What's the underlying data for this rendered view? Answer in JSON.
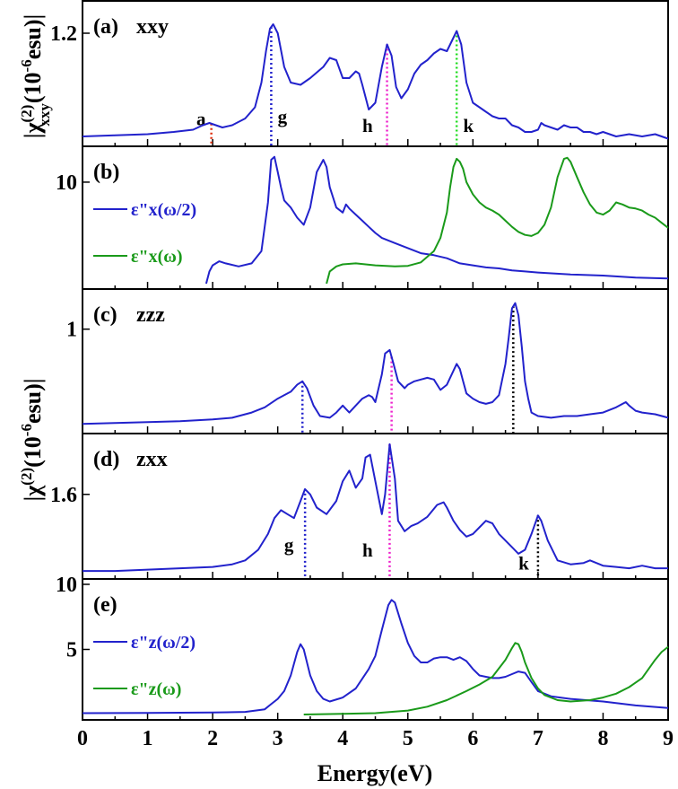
{
  "chart_data": {
    "type": "line",
    "xlabel": "Energy(eV)",
    "xlim": [
      0,
      9
    ],
    "x_ticks": [
      "0",
      "1",
      "2",
      "3",
      "4",
      "5",
      "6",
      "7",
      "8",
      "9"
    ],
    "ylabel_top": "|χ(2)xxy(10-6esu)|",
    "ylabel_mid": "|χ(2)(10-6esu)|",
    "colors": {
      "blue": "#2222cc",
      "green": "#1a9a1a",
      "red": "#e03010",
      "magenta": "#ee22cc",
      "lime": "#22dd22",
      "black": "#000000"
    },
    "panels": [
      {
        "id": "a",
        "label": "(a)",
        "name": "xxy",
        "ylim": [
          0.72,
          1.32
        ],
        "y_ticks": [
          {
            "value": 1.2,
            "label": "1.2"
          }
        ],
        "series": [
          {
            "name": "|χ(2)xxy|",
            "color": "blue",
            "x": [
              0,
              0.5,
              1,
              1.4,
              1.7,
              1.85,
              1.95,
              2.05,
              2.15,
              2.3,
              2.5,
              2.65,
              2.75,
              2.82,
              2.88,
              2.93,
              3.0,
              3.1,
              3.2,
              3.35,
              3.5,
              3.7,
              3.8,
              3.9,
              4.0,
              4.1,
              4.2,
              4.25,
              4.3,
              4.4,
              4.5,
              4.6,
              4.68,
              4.75,
              4.82,
              4.9,
              5.0,
              5.1,
              5.2,
              5.3,
              5.4,
              5.5,
              5.6,
              5.7,
              5.75,
              5.82,
              5.9,
              6.0,
              6.1,
              6.2,
              6.3,
              6.4,
              6.5,
              6.6,
              6.7,
              6.8,
              6.9,
              7.0,
              7.05,
              7.1,
              7.2,
              7.3,
              7.4,
              7.5,
              7.6,
              7.7,
              7.8,
              7.9,
              8.0,
              8.2,
              8.4,
              8.6,
              8.8,
              9.0
            ],
            "y": [
              0.74,
              0.745,
              0.75,
              0.76,
              0.77,
              0.79,
              0.8,
              0.79,
              0.78,
              0.79,
              0.82,
              0.87,
              0.98,
              1.12,
              1.22,
              1.24,
              1.2,
              1.05,
              0.98,
              0.97,
              1.0,
              1.05,
              1.09,
              1.08,
              1.0,
              1.0,
              1.03,
              1.02,
              0.97,
              0.86,
              0.89,
              1.05,
              1.15,
              1.1,
              0.96,
              0.91,
              0.95,
              1.02,
              1.06,
              1.08,
              1.11,
              1.13,
              1.12,
              1.18,
              1.21,
              1.15,
              0.98,
              0.89,
              0.87,
              0.85,
              0.83,
              0.82,
              0.82,
              0.79,
              0.78,
              0.76,
              0.76,
              0.77,
              0.8,
              0.79,
              0.78,
              0.77,
              0.79,
              0.78,
              0.78,
              0.76,
              0.76,
              0.75,
              0.76,
              0.74,
              0.75,
              0.74,
              0.75,
              0.73
            ]
          }
        ],
        "markers": [
          {
            "x": 1.98,
            "color": "red",
            "label": "a",
            "label_x": 1.75,
            "label_y": 0.79
          },
          {
            "x": 2.9,
            "color": "blue",
            "label": "g",
            "label_x": 3.0,
            "label_y": 0.8
          },
          {
            "x": 4.68,
            "color": "magenta",
            "label": "h",
            "label_x": 4.3,
            "label_y": 0.76
          },
          {
            "x": 5.75,
            "color": "lime",
            "label": "k",
            "label_x": 5.85,
            "label_y": 0.76
          }
        ]
      },
      {
        "id": "b",
        "label": "(b)",
        "name": "",
        "ylim": [
          0,
          13
        ],
        "y_ticks": [
          {
            "value": 10,
            "label": "10"
          }
        ],
        "legend": [
          {
            "text": "ε\"x(ω/2)",
            "color": "blue"
          },
          {
            "text": "ε\"x(ω)",
            "color": "green"
          }
        ],
        "series": [
          {
            "name": "ε\"x(ω/2)",
            "color": "blue",
            "x": [
              1.9,
              1.95,
              2.0,
              2.1,
              2.2,
              2.4,
              2.6,
              2.75,
              2.85,
              2.9,
              2.95,
              3.0,
              3.05,
              3.1,
              3.2,
              3.3,
              3.4,
              3.5,
              3.6,
              3.7,
              3.75,
              3.8,
              3.9,
              4.0,
              4.05,
              4.1,
              4.2,
              4.3,
              4.4,
              4.5,
              4.6,
              4.8,
              5.0,
              5.2,
              5.4,
              5.6,
              5.8,
              6.0,
              6.2,
              6.4,
              6.6,
              6.8,
              7.0,
              7.5,
              8.0,
              8.5,
              9.0
            ],
            "y": [
              0,
              1.2,
              1.8,
              2.2,
              2.0,
              1.7,
              2.0,
              3.2,
              8.0,
              12.2,
              12.5,
              11.0,
              9.5,
              8.2,
              7.5,
              6.5,
              5.8,
              7.5,
              11.0,
              12.2,
              11.5,
              9.5,
              7.5,
              7.0,
              7.8,
              7.4,
              6.8,
              6.2,
              5.6,
              5.0,
              4.5,
              4.0,
              3.5,
              3.0,
              2.8,
              2.5,
              2.0,
              1.8,
              1.6,
              1.5,
              1.3,
              1.2,
              1.1,
              0.9,
              0.8,
              0.6,
              0.5
            ]
          },
          {
            "name": "ε\"x(ω)",
            "color": "green",
            "x": [
              3.75,
              3.8,
              3.9,
              4.0,
              4.2,
              4.5,
              4.8,
              5.0,
              5.2,
              5.4,
              5.5,
              5.6,
              5.65,
              5.7,
              5.75,
              5.8,
              5.85,
              5.9,
              6.0,
              6.1,
              6.2,
              6.3,
              6.4,
              6.5,
              6.6,
              6.7,
              6.8,
              6.9,
              7.0,
              7.1,
              7.2,
              7.3,
              7.4,
              7.45,
              7.5,
              7.6,
              7.7,
              7.8,
              7.9,
              8.0,
              8.1,
              8.2,
              8.3,
              8.4,
              8.5,
              8.6,
              8.7,
              8.8,
              8.9,
              9.0
            ],
            "y": [
              0,
              1.2,
              1.7,
              1.9,
              2.0,
              1.8,
              1.7,
              1.75,
              2.1,
              3.2,
              4.5,
              7.0,
              9.5,
              11.5,
              12.3,
              12.0,
              11.3,
              10.0,
              8.8,
              8.0,
              7.5,
              7.2,
              6.8,
              6.2,
              5.6,
              5.1,
              4.8,
              4.7,
              5.0,
              5.8,
              7.5,
              10.5,
              12.3,
              12.4,
              12.0,
              10.5,
              9.0,
              7.8,
              7.0,
              6.8,
              7.2,
              8.0,
              7.8,
              7.5,
              7.4,
              7.2,
              6.8,
              6.5,
              6.0,
              5.5
            ]
          }
        ],
        "markers": []
      },
      {
        "id": "c",
        "label": "(c)",
        "name": "zzz",
        "ylim": [
          0.43,
          1.2
        ],
        "y_ticks": [
          {
            "value": 1.0,
            "label": "1"
          }
        ],
        "series": [
          {
            "name": "|χ(2)zzz|",
            "color": "blue",
            "x": [
              0,
              0.5,
              1,
              1.5,
              2,
              2.3,
              2.6,
              2.8,
              3.0,
              3.1,
              3.2,
              3.3,
              3.38,
              3.45,
              3.55,
              3.65,
              3.8,
              3.9,
              4.0,
              4.05,
              4.1,
              4.2,
              4.3,
              4.4,
              4.45,
              4.5,
              4.6,
              4.65,
              4.72,
              4.78,
              4.85,
              4.95,
              5.0,
              5.1,
              5.2,
              5.3,
              5.4,
              5.5,
              5.6,
              5.7,
              5.75,
              5.8,
              5.85,
              5.9,
              6.0,
              6.1,
              6.2,
              6.3,
              6.4,
              6.5,
              6.55,
              6.6,
              6.65,
              6.7,
              6.75,
              6.8,
              6.85,
              6.9,
              7.0,
              7.2,
              7.4,
              7.6,
              7.8,
              8.0,
              8.2,
              8.3,
              8.35,
              8.4,
              8.5,
              8.6,
              8.8,
              9.0
            ],
            "y": [
              0.455,
              0.46,
              0.465,
              0.47,
              0.48,
              0.49,
              0.52,
              0.55,
              0.6,
              0.62,
              0.64,
              0.68,
              0.7,
              0.66,
              0.56,
              0.5,
              0.49,
              0.52,
              0.56,
              0.54,
              0.52,
              0.56,
              0.6,
              0.62,
              0.61,
              0.58,
              0.74,
              0.86,
              0.88,
              0.8,
              0.7,
              0.66,
              0.68,
              0.7,
              0.71,
              0.72,
              0.71,
              0.65,
              0.68,
              0.76,
              0.8,
              0.77,
              0.7,
              0.63,
              0.6,
              0.58,
              0.57,
              0.58,
              0.62,
              0.8,
              0.95,
              1.12,
              1.15,
              1.08,
              0.9,
              0.7,
              0.6,
              0.52,
              0.5,
              0.49,
              0.5,
              0.5,
              0.51,
              0.52,
              0.55,
              0.57,
              0.58,
              0.56,
              0.53,
              0.52,
              0.51,
              0.49
            ]
          }
        ],
        "markers": [
          {
            "x": 3.38,
            "color": "blue"
          },
          {
            "x": 4.75,
            "color": "magenta"
          },
          {
            "x": 6.62,
            "color": "black"
          }
        ]
      },
      {
        "id": "d",
        "label": "(d)",
        "name": "zxx",
        "ylim": [
          1.0,
          2.02
        ],
        "y_ticks": [
          {
            "value": 1.6,
            "label": "1.6"
          }
        ],
        "series": [
          {
            "name": "|χ(2)zxx|",
            "color": "blue",
            "x": [
              0,
              0.5,
              1,
              1.5,
              2,
              2.3,
              2.5,
              2.7,
              2.85,
              2.95,
              3.05,
              3.15,
              3.25,
              3.35,
              3.42,
              3.5,
              3.6,
              3.75,
              3.9,
              4.0,
              4.1,
              4.2,
              4.3,
              4.35,
              4.42,
              4.5,
              4.6,
              4.65,
              4.72,
              4.8,
              4.85,
              4.95,
              5.05,
              5.15,
              5.3,
              5.45,
              5.55,
              5.6,
              5.7,
              5.8,
              5.9,
              6.0,
              6.1,
              6.2,
              6.3,
              6.4,
              6.5,
              6.6,
              6.7,
              6.8,
              6.9,
              7.0,
              7.05,
              7.15,
              7.3,
              7.5,
              7.7,
              7.8,
              8.0,
              8.2,
              8.4,
              8.6,
              8.8,
              9.0
            ],
            "y": [
              1.02,
              1.02,
              1.03,
              1.04,
              1.05,
              1.07,
              1.1,
              1.18,
              1.3,
              1.42,
              1.48,
              1.45,
              1.42,
              1.55,
              1.64,
              1.6,
              1.5,
              1.45,
              1.55,
              1.7,
              1.78,
              1.65,
              1.72,
              1.88,
              1.9,
              1.7,
              1.45,
              1.6,
              1.98,
              1.72,
              1.4,
              1.32,
              1.36,
              1.38,
              1.43,
              1.52,
              1.54,
              1.5,
              1.4,
              1.33,
              1.28,
              1.3,
              1.35,
              1.4,
              1.38,
              1.3,
              1.25,
              1.2,
              1.15,
              1.18,
              1.3,
              1.44,
              1.4,
              1.25,
              1.1,
              1.07,
              1.08,
              1.1,
              1.06,
              1.05,
              1.04,
              1.06,
              1.04,
              1.04
            ]
          }
        ],
        "markers": [
          {
            "x": 3.42,
            "color": "blue",
            "label": "g",
            "label_x": 3.1,
            "label_y": 1.17
          },
          {
            "x": 4.72,
            "color": "magenta",
            "label": "h",
            "label_x": 4.3,
            "label_y": 1.13
          },
          {
            "x": 7.0,
            "color": "black",
            "label": "k",
            "label_x": 6.7,
            "label_y": 1.03
          }
        ]
      },
      {
        "id": "e",
        "label": "(e)",
        "name": "",
        "ylim": [
          0,
          10
        ],
        "y_ticks": [
          {
            "value": 10,
            "label": "10"
          },
          {
            "value": 5,
            "label": "5"
          }
        ],
        "legend": [
          {
            "text": "ε\"z(ω/2)",
            "color": "blue"
          },
          {
            "text": "ε\"z(ω)",
            "color": "green"
          }
        ],
        "series": [
          {
            "name": "ε\"z(ω/2)",
            "color": "blue",
            "x": [
              0,
              1,
              2,
              2.5,
              2.8,
              2.9,
              3.0,
              3.1,
              3.2,
              3.3,
              3.35,
              3.4,
              3.5,
              3.6,
              3.7,
              3.8,
              4.0,
              4.2,
              4.4,
              4.5,
              4.6,
              4.7,
              4.75,
              4.8,
              4.9,
              5.0,
              5.1,
              5.2,
              5.3,
              5.4,
              5.5,
              5.6,
              5.7,
              5.8,
              5.9,
              6.0,
              6.1,
              6.2,
              6.3,
              6.4,
              6.5,
              6.6,
              6.7,
              6.8,
              6.9,
              7.0,
              7.2,
              7.5,
              8.0,
              8.5,
              9.0
            ],
            "y": [
              0.1,
              0.12,
              0.15,
              0.2,
              0.4,
              0.8,
              1.2,
              1.8,
              3.0,
              4.8,
              5.4,
              5.0,
              3.0,
              1.8,
              1.2,
              1.0,
              1.3,
              2.0,
              3.5,
              4.5,
              6.5,
              8.4,
              8.8,
              8.6,
              7.0,
              5.5,
              4.5,
              4.0,
              4.0,
              4.3,
              4.4,
              4.4,
              4.2,
              4.4,
              4.1,
              3.5,
              3.0,
              2.9,
              2.8,
              2.8,
              2.9,
              3.1,
              3.3,
              3.2,
              2.5,
              1.8,
              1.4,
              1.2,
              1.0,
              0.7,
              0.5
            ]
          },
          {
            "name": "ε\"z(ω)",
            "color": "green",
            "x": [
              3.4,
              3.6,
              4.0,
              4.5,
              5.0,
              5.3,
              5.6,
              5.9,
              6.1,
              6.3,
              6.5,
              6.6,
              6.65,
              6.7,
              6.75,
              6.8,
              6.9,
              7.0,
              7.1,
              7.3,
              7.5,
              7.8,
              8.0,
              8.2,
              8.4,
              8.6,
              8.7,
              8.8,
              8.9,
              9.0
            ],
            "y": [
              0,
              0.02,
              0.05,
              0.1,
              0.3,
              0.6,
              1.1,
              1.8,
              2.3,
              2.9,
              4.2,
              5.1,
              5.5,
              5.4,
              4.8,
              4.0,
              2.8,
              2.0,
              1.5,
              1.1,
              1.0,
              1.1,
              1.3,
              1.6,
              2.1,
              2.8,
              3.5,
              4.2,
              4.8,
              5.2
            ]
          }
        ],
        "markers": []
      }
    ]
  }
}
